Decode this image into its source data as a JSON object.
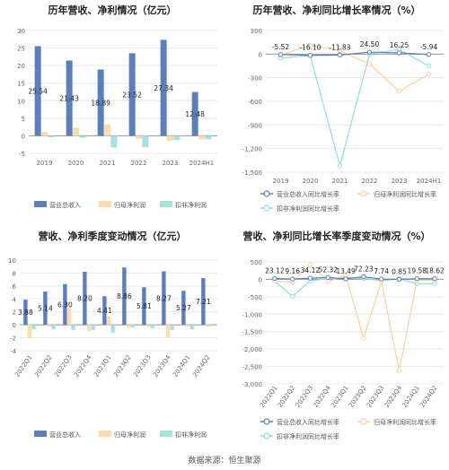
{
  "source": "数据来源：恒生聚源",
  "chart_data": [
    {
      "type": "bar",
      "title": "历年营收、净利情况（亿元）",
      "categories": [
        "2019",
        "2020",
        "2021",
        "2022",
        "2023",
        "2024H1"
      ],
      "ylim": [
        -5,
        30
      ],
      "yticks": [
        -5,
        0,
        5,
        10,
        15,
        20,
        25,
        30
      ],
      "series": [
        {
          "name": "营业总收入",
          "color": "#5b7fbd",
          "values": [
            25.54,
            21.43,
            18.89,
            23.52,
            27.34,
            12.48
          ],
          "labels": [
            "25.54",
            "21.43",
            "18.89",
            "23.52",
            "27.34",
            "12.48"
          ]
        },
        {
          "name": "归母净利润",
          "color": "#fbdcaa",
          "values": [
            1.1,
            2.3,
            3.3,
            -0.8,
            -1.4,
            -1.0
          ]
        },
        {
          "name": "扣非净利润",
          "color": "#a8e0e0",
          "values": [
            -0.4,
            -0.5,
            -3.3,
            -3.2,
            -1.2,
            -1.0
          ]
        }
      ]
    },
    {
      "type": "line",
      "title": "历年营收、净利同比增长率情况（%）",
      "categories": [
        "2019",
        "2020",
        "2021",
        "2022",
        "2023",
        "2024H1"
      ],
      "ylim": [
        -1500,
        300
      ],
      "yticks": [
        300,
        0,
        -300,
        -600,
        -900,
        -1200,
        -1500
      ],
      "series": [
        {
          "name": "营业总收入同比增长率",
          "color": "#5b7fbd",
          "values": [
            -5.52,
            -16.1,
            -11.83,
            24.5,
            16.25,
            -5.94
          ],
          "labels": [
            "-5.52",
            "-16.10",
            "-11.83",
            "24.50",
            "16.25",
            "-5.94"
          ]
        },
        {
          "name": "归母净利润同比增长率",
          "color": "#fbd09a",
          "values": [
            -10,
            110,
            43,
            -126,
            -470,
            -255
          ]
        },
        {
          "name": "扣非净利润同比增长率",
          "color": "#8fdede",
          "values": [
            -50,
            -20,
            -1420,
            3,
            60,
            -150
          ]
        }
      ]
    },
    {
      "type": "bar",
      "title": "营收、净利季度变动情况（亿元）",
      "categories": [
        "2022Q1",
        "2022Q2",
        "2022Q3",
        "2022Q4",
        "2023Q1",
        "2023Q2",
        "2023Q3",
        "2023Q4",
        "2024Q1",
        "2024Q2"
      ],
      "ylim": [
        -4,
        10
      ],
      "yticks": [
        -4,
        -2,
        0,
        2,
        4,
        6,
        8,
        10
      ],
      "series": [
        {
          "name": "营业总收入",
          "color": "#5b7fbd",
          "values": [
            3.88,
            5.14,
            6.3,
            8.2,
            4.41,
            8.86,
            5.81,
            8.27,
            5.27,
            7.21
          ],
          "labels": [
            "3.88",
            "5.14",
            "6.30",
            "8.20",
            "4.41",
            "8.86",
            "5.81",
            "8.27",
            "5.27",
            "7.21"
          ]
        },
        {
          "name": "归母净利润",
          "color": "#fbdcaa",
          "values": [
            -2.1,
            -0.3,
            2.6,
            -1.0,
            1.3,
            -0.4,
            -0.3,
            -1.9,
            -0.3,
            -0.3
          ]
        },
        {
          "name": "扣非净利润",
          "color": "#a8e0e0",
          "values": [
            -0.7,
            -0.7,
            -0.8,
            -0.8,
            -1.2,
            -0.4,
            -0.5,
            -0.8,
            -0.7,
            -0.2
          ]
        }
      ]
    },
    {
      "type": "line",
      "title": "营收、净利同比增长率季度变动情况（%）",
      "categories": [
        "2022Q1",
        "2022Q2",
        "2022Q3",
        "2022Q4",
        "2023Q1",
        "2023Q2",
        "2023Q3",
        "2023Q4",
        "2024Q1",
        "2024Q2"
      ],
      "ylim": [
        -3000,
        500
      ],
      "yticks": [
        500,
        0,
        -500,
        -1000,
        -1500,
        -2000,
        -2500,
        -3000
      ],
      "series": [
        {
          "name": "营业总收入同比增长率",
          "color": "#5b7fbd",
          "values": [
            23.12,
            9.16,
            34.12,
            52.32,
            13.49,
            72.23,
            7.74,
            0.85,
            19.58,
            18.62
          ],
          "labels": [
            "23.12",
            "9.16",
            "34.12",
            "52.32",
            "13.49",
            "72.23",
            "7.74",
            "0.85",
            "19.58",
            "18.62"
          ]
        },
        {
          "name": "归母净利润同比增长率",
          "color": "#fbd09a",
          "values": [
            -50,
            -80,
            420,
            -60,
            110,
            -1690,
            -60,
            -2620,
            -30,
            -20
          ]
        },
        {
          "name": "扣非净利润同比增长率",
          "color": "#8fdede",
          "values": [
            -50,
            -490,
            -40,
            20,
            50,
            30,
            -40,
            10,
            -130,
            -120
          ]
        }
      ]
    }
  ]
}
